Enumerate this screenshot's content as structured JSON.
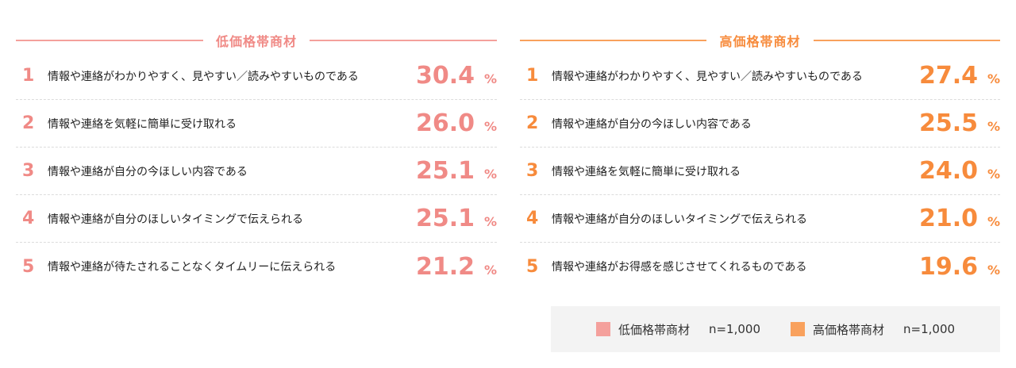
{
  "colors": {
    "low": "#f4a09c",
    "high": "#f9a15d"
  },
  "chart_data": [
    {
      "type": "table",
      "title": "低価格帯商材",
      "items": [
        {
          "rank": "1",
          "label": "情報や連絡がわかりやすく、見やすい／読みやすいものである",
          "value": "30.4",
          "unit": "%"
        },
        {
          "rank": "2",
          "label": "情報や連絡を気軽に簡単に受け取れる",
          "value": "26.0",
          "unit": "%"
        },
        {
          "rank": "3",
          "label": "情報や連絡が自分の今ほしい内容である",
          "value": "25.1",
          "unit": "%"
        },
        {
          "rank": "4",
          "label": "情報や連絡が自分のほしいタイミングで伝えられる",
          "value": "25.1",
          "unit": "%"
        },
        {
          "rank": "5",
          "label": "情報や連絡が待たされることなくタイムリーに伝えられる",
          "value": "21.2",
          "unit": "%"
        }
      ]
    },
    {
      "type": "table",
      "title": "高価格帯商材",
      "items": [
        {
          "rank": "1",
          "label": "情報や連絡がわかりやすく、見やすい／読みやすいものである",
          "value": "27.4",
          "unit": "%"
        },
        {
          "rank": "2",
          "label": "情報や連絡が自分の今ほしい内容である",
          "value": "25.5",
          "unit": "%"
        },
        {
          "rank": "3",
          "label": "情報や連絡を気軽に簡単に受け取れる",
          "value": "24.0",
          "unit": "%"
        },
        {
          "rank": "4",
          "label": "情報や連絡が自分のほしいタイミングで伝えられる",
          "value": "21.0",
          "unit": "%"
        },
        {
          "rank": "5",
          "label": "情報や連絡がお得感を感じさせてくれるものである",
          "value": "19.6",
          "unit": "%"
        }
      ]
    }
  ],
  "legend": [
    {
      "name": "低価格帯商材",
      "n": "n=1,000"
    },
    {
      "name": "高価格帯商材",
      "n": "n=1,000"
    }
  ]
}
